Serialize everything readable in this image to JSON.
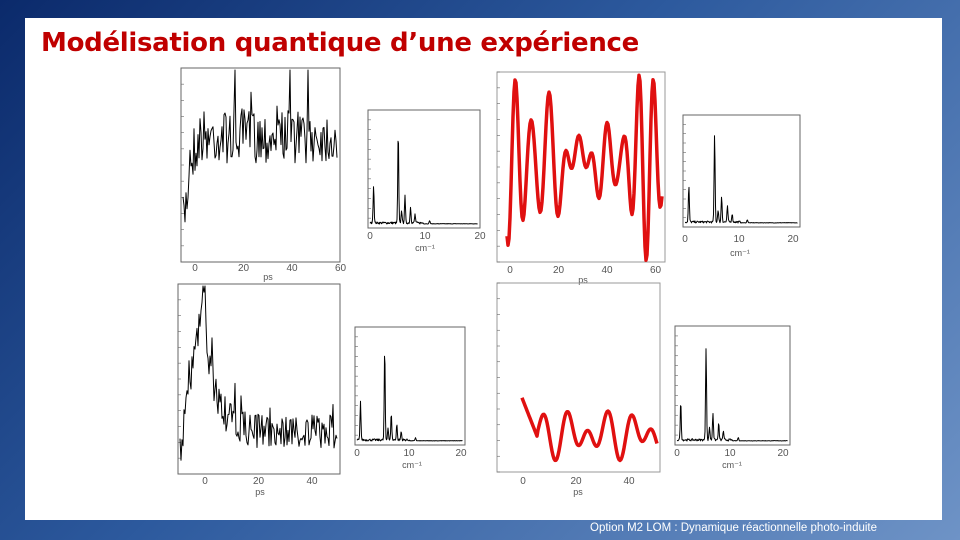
{
  "title": "Modélisation quantique d’une expérience",
  "footer": "Option M2 LOM : Dynamique réactionnelle photo-induite",
  "panels": [
    {
      "xticks": [
        "0",
        "20",
        "40",
        "60"
      ],
      "xlabel": "ps"
    },
    {
      "xticks": [
        "0",
        "10",
        "20"
      ],
      "xlabel": "cm⁻¹"
    },
    {
      "xticks": [
        "0",
        "20",
        "40",
        "60"
      ],
      "xlabel": "ps"
    },
    {
      "xticks": [
        "0",
        "10",
        "20"
      ],
      "xlabel": "cm⁻¹"
    },
    {
      "xticks": [
        "0",
        "20",
        "40"
      ],
      "xlabel": "ps"
    },
    {
      "xticks": [
        "0",
        "10",
        "20"
      ],
      "xlabel": "cm⁻¹"
    },
    {
      "xticks": [
        "0",
        "20",
        "40"
      ],
      "xlabel": "ps"
    },
    {
      "xticks": [
        "0",
        "10",
        "20"
      ],
      "xlabel": "cm⁻¹"
    }
  ]
}
